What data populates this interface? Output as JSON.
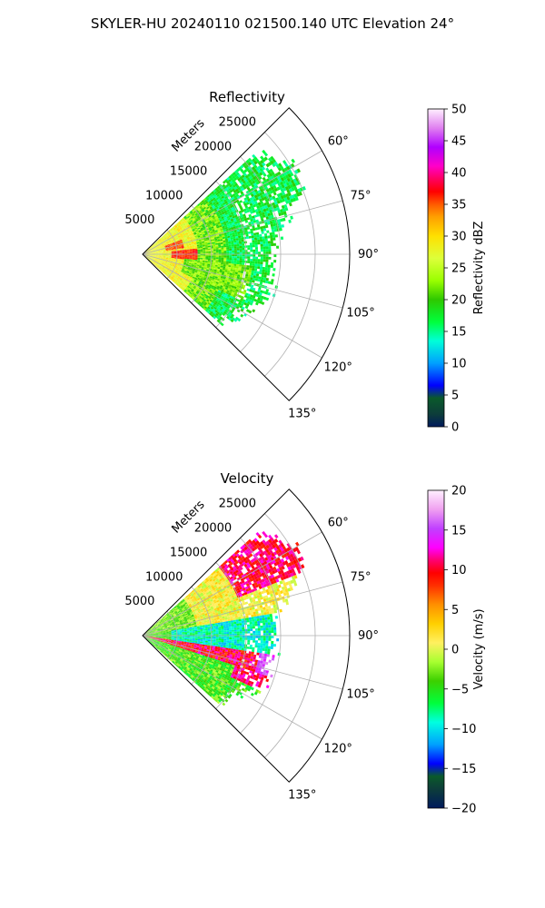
{
  "figure_title": "SKYLER-HU  20240110  021500.140 UTC Elevation 24°",
  "chart_data": [
    {
      "type": "heatmap",
      "subtype": "polar-sector-ppi",
      "title": "Reflectivity",
      "range_label": "Meters",
      "range_ticks": [
        5000,
        10000,
        15000,
        20000,
        25000
      ],
      "range_tick_labels": [
        "5000",
        "10000",
        "15000",
        "20000",
        "25000"
      ],
      "rmax": 30000,
      "azimuth_range_deg": [
        45,
        135
      ],
      "azimuth_ticks": [
        60,
        75,
        90,
        105,
        120,
        135
      ],
      "azimuth_tick_labels": [
        "60°",
        "75°",
        "90°",
        "105°",
        "120°",
        "135°"
      ],
      "grid": true,
      "colorbar": {
        "label": "Reflectivity dBZ",
        "vmin": 0,
        "vmax": 50,
        "ticks": [
          0,
          5,
          10,
          15,
          20,
          25,
          30,
          35,
          40,
          45,
          50
        ],
        "tick_labels": [
          "0",
          "5",
          "10",
          "15",
          "20",
          "25",
          "30",
          "35",
          "40",
          "45",
          "50"
        ]
      },
      "approx_field": [
        {
          "range_m": [
            0,
            3000
          ],
          "az_deg": [
            55,
            130
          ],
          "value": 27
        },
        {
          "range_m": [
            3000,
            8000
          ],
          "az_deg": [
            62,
            128
          ],
          "value": 30
        },
        {
          "range_m": [
            3000,
            8000
          ],
          "az_deg": [
            86,
            96
          ],
          "value": 36
        },
        {
          "range_m": [
            8000,
            20000
          ],
          "az_deg": [
            58,
            125
          ],
          "value": 18
        },
        {
          "range_m": [
            20000,
            25500
          ],
          "az_deg": [
            52,
            110
          ],
          "value": 16
        }
      ]
    },
    {
      "type": "heatmap",
      "subtype": "polar-sector-ppi",
      "title": "Velocity",
      "range_label": "Meters",
      "range_ticks": [
        5000,
        10000,
        15000,
        20000,
        25000
      ],
      "range_tick_labels": [
        "5000",
        "10000",
        "15000",
        "20000",
        "25000"
      ],
      "rmax": 30000,
      "azimuth_range_deg": [
        45,
        135
      ],
      "azimuth_ticks": [
        60,
        75,
        90,
        105,
        120,
        135
      ],
      "azimuth_tick_labels": [
        "60°",
        "75°",
        "90°",
        "105°",
        "120°",
        "135°"
      ],
      "grid": true,
      "colorbar": {
        "label": "Velocity (m/s)",
        "vmin": -20,
        "vmax": 20,
        "ticks": [
          -20,
          -15,
          -10,
          -5,
          0,
          5,
          10,
          15,
          20
        ],
        "tick_labels": [
          "−20",
          "−15",
          "−10",
          "−5",
          "0",
          "5",
          "10",
          "15",
          "20"
        ]
      },
      "approx_field": [
        {
          "range_m": [
            0,
            25000
          ],
          "az_deg": [
            52,
            80
          ],
          "value": 2
        },
        {
          "range_m": [
            15000,
            25500
          ],
          "az_deg": [
            52,
            66
          ],
          "value": 9
        },
        {
          "range_m": [
            0,
            25000
          ],
          "az_deg": [
            82,
            98
          ],
          "value": -9
        },
        {
          "range_m": [
            3000,
            22000
          ],
          "az_deg": [
            98,
            108
          ],
          "value": 11
        },
        {
          "range_m": [
            8000,
            20000
          ],
          "az_deg": [
            108,
            125
          ],
          "value": -3
        }
      ]
    }
  ]
}
